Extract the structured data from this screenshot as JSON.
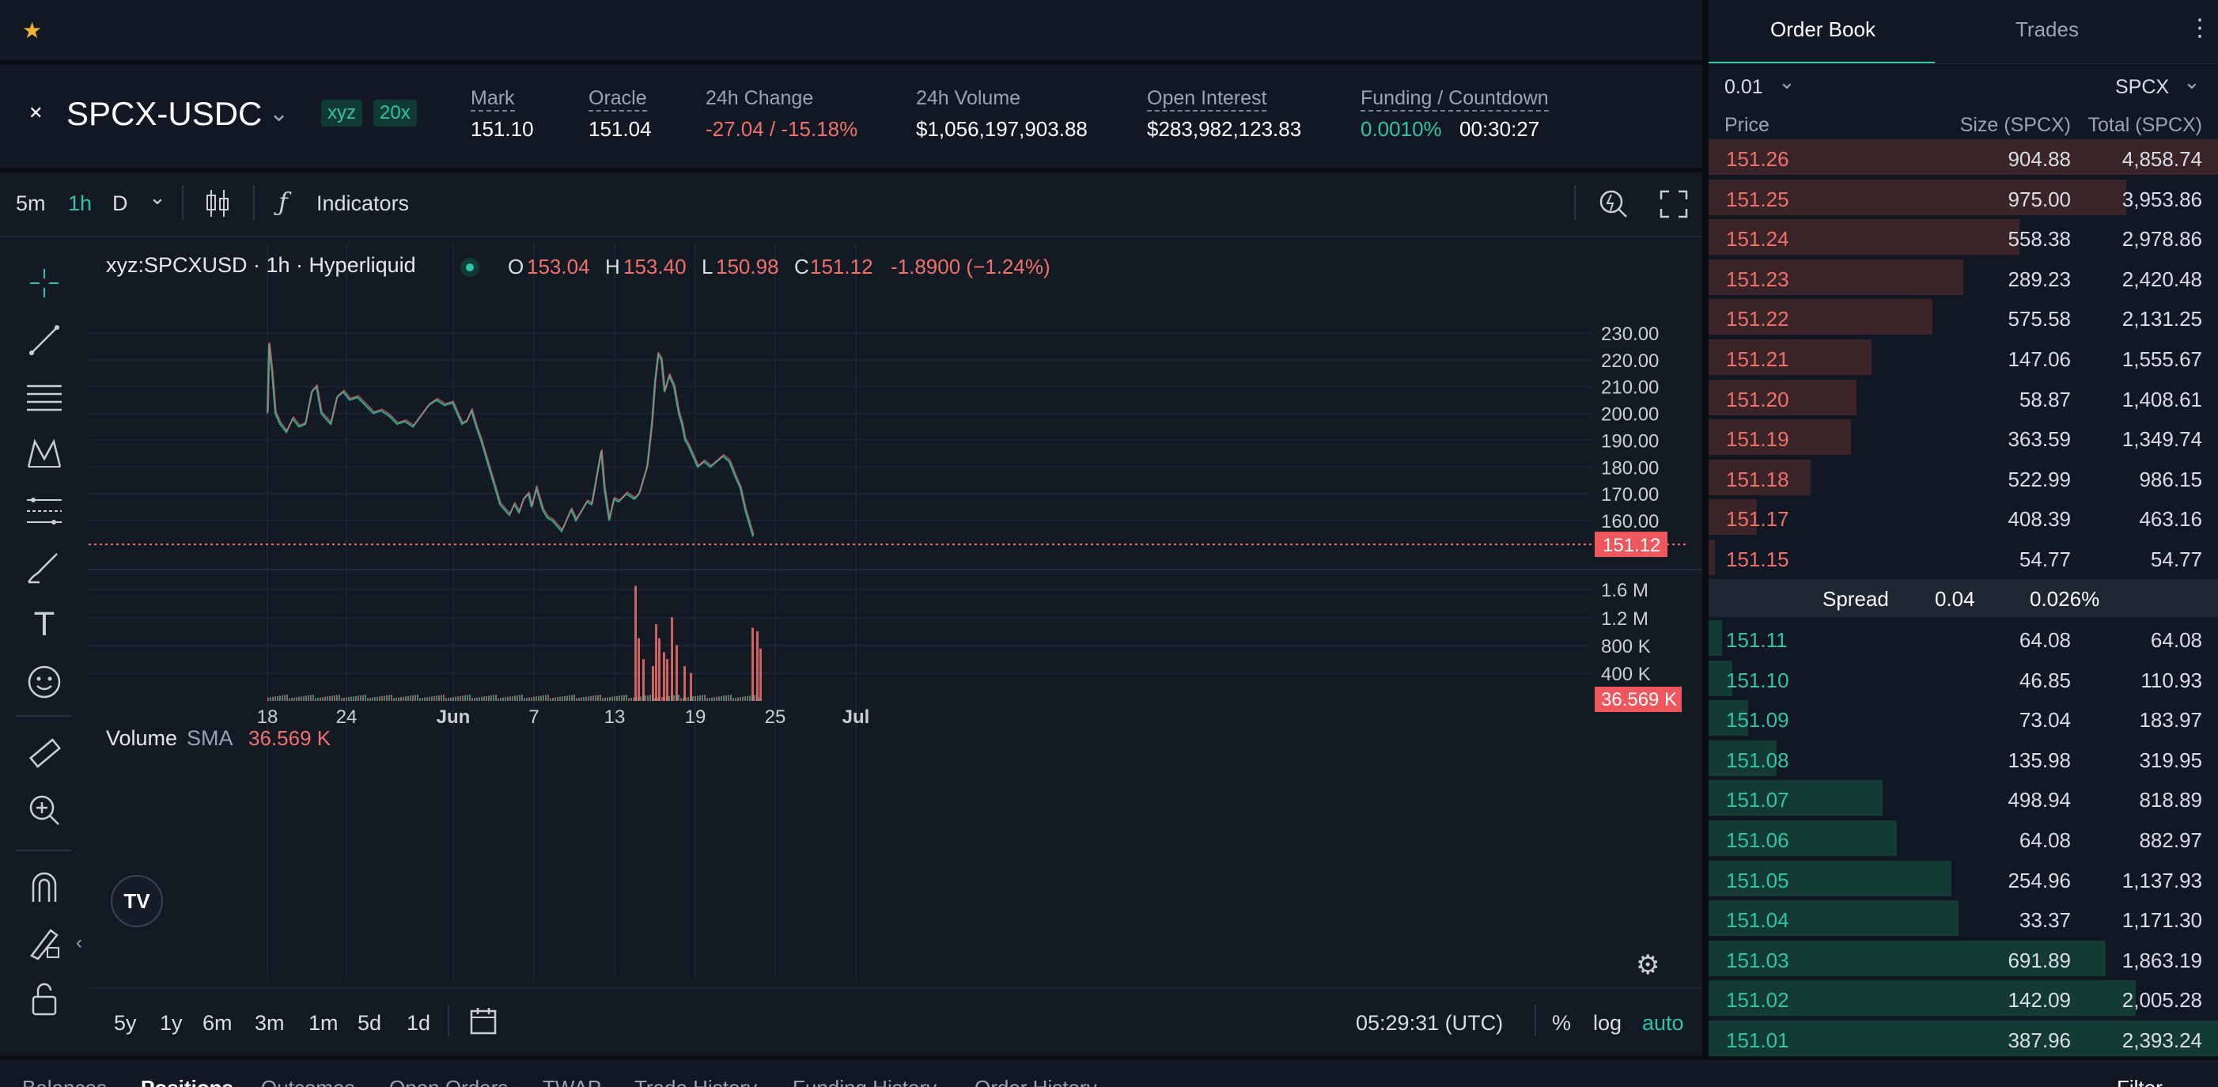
{
  "header": {
    "star_icon": "star-icon"
  },
  "market": {
    "symbol": "SPCX-USDC",
    "dex_badge": "xyz",
    "leverage_badge": "20x",
    "stats": [
      {
        "label": "Mark",
        "value": "151.10"
      },
      {
        "label": "Oracle",
        "value": "151.04"
      },
      {
        "label": "24h Change",
        "value": "-27.04 / -15.18%"
      },
      {
        "label": "24h Volume",
        "value": "$1,056,197,903.88"
      },
      {
        "label": "Open Interest",
        "value": "$283,982,123.83"
      },
      {
        "label": "Funding / Countdown",
        "value": "0.0010%",
        "value2": "00:30:27"
      }
    ]
  },
  "toolbar": {
    "intervals": [
      "5m",
      "1h",
      "D"
    ],
    "active_interval": "1h",
    "indicators_label": "Indicators"
  },
  "chart_legend": {
    "title": "xyz:SPCXUSD · 1h · Hyperliquid",
    "o_label": "O",
    "o": "153.04",
    "h_label": "H",
    "h": "153.40",
    "l_label": "L",
    "l": "150.98",
    "c_label": "C",
    "c": "151.12",
    "change": "-1.8900 (−1.24%)"
  },
  "volume_legend": {
    "label": "Volume",
    "sma": "SMA",
    "value": "36.569 K"
  },
  "price_axis": [
    "230.00",
    "220.00",
    "210.00",
    "200.00",
    "190.00",
    "180.00",
    "170.00",
    "160.00"
  ],
  "current_price_tag": "151.12",
  "volume_axis": [
    "1.6 M",
    "1.2 M",
    "800 K",
    "400 K"
  ],
  "volume_tag": "36.569 K",
  "time_axis": [
    "18",
    "24",
    "Jun",
    "7",
    "13",
    "19",
    "25",
    "Jul"
  ],
  "ranges": [
    "5y",
    "1y",
    "6m",
    "3m",
    "1m",
    "5d",
    "1d"
  ],
  "clock": "05:29:31 (UTC)",
  "scale_opts": [
    "%",
    "log",
    "auto"
  ],
  "bottom_tabs": [
    "Balances",
    "Positions",
    "Outcomes",
    "Open Orders",
    "TWAP",
    "Trade History",
    "Funding History",
    "Order History"
  ],
  "bottom_filter": "Filter",
  "orderbook": {
    "tabs": [
      "Order Book",
      "Trades"
    ],
    "tick": "0.01",
    "unit": "SPCX",
    "headers": [
      "Price",
      "Size (SPCX)",
      "Total (SPCX)"
    ],
    "asks": [
      {
        "price": "151.26",
        "size": "904.88",
        "total": "4,858.74",
        "depth": 1.0
      },
      {
        "price": "151.25",
        "size": "975.00",
        "total": "3,953.86",
        "depth": 0.82
      },
      {
        "price": "151.24",
        "size": "558.38",
        "total": "2,978.86",
        "depth": 0.61
      },
      {
        "price": "151.23",
        "size": "289.23",
        "total": "2,420.48",
        "depth": 0.5
      },
      {
        "price": "151.22",
        "size": "575.58",
        "total": "2,131.25",
        "depth": 0.44
      },
      {
        "price": "151.21",
        "size": "147.06",
        "total": "1,555.67",
        "depth": 0.32
      },
      {
        "price": "151.20",
        "size": "58.87",
        "total": "1,408.61",
        "depth": 0.29
      },
      {
        "price": "151.19",
        "size": "363.59",
        "total": "1,349.74",
        "depth": 0.28
      },
      {
        "price": "151.18",
        "size": "522.99",
        "total": "986.15",
        "depth": 0.2
      },
      {
        "price": "151.17",
        "size": "408.39",
        "total": "463.16",
        "depth": 0.095
      },
      {
        "price": "151.15",
        "size": "54.77",
        "total": "54.77",
        "depth": 0.012
      }
    ],
    "spread_label": "Spread",
    "spread_value": "0.04",
    "spread_pct": "0.026%",
    "bids": [
      {
        "price": "151.11",
        "size": "64.08",
        "total": "64.08",
        "depth": 0.027
      },
      {
        "price": "151.10",
        "size": "46.85",
        "total": "110.93",
        "depth": 0.046
      },
      {
        "price": "151.09",
        "size": "73.04",
        "total": "183.97",
        "depth": 0.077
      },
      {
        "price": "151.08",
        "size": "135.98",
        "total": "319.95",
        "depth": 0.134
      },
      {
        "price": "151.07",
        "size": "498.94",
        "total": "818.89",
        "depth": 0.342
      },
      {
        "price": "151.06",
        "size": "64.08",
        "total": "882.97",
        "depth": 0.369
      },
      {
        "price": "151.05",
        "size": "254.96",
        "total": "1,137.93",
        "depth": 0.476
      },
      {
        "price": "151.04",
        "size": "33.37",
        "total": "1,171.30",
        "depth": 0.49
      },
      {
        "price": "151.03",
        "size": "691.89",
        "total": "1,863.19",
        "depth": 0.779
      },
      {
        "price": "151.02",
        "size": "142.09",
        "total": "2,005.28",
        "depth": 0.838
      },
      {
        "price": "151.01",
        "size": "387.96",
        "total": "2,393.24",
        "depth": 1.0
      }
    ]
  },
  "colors": {
    "ask": "#f0706a",
    "bid": "#2ec4a6",
    "ask_bg": "#3a2428",
    "bid_bg": "#143a34"
  }
}
